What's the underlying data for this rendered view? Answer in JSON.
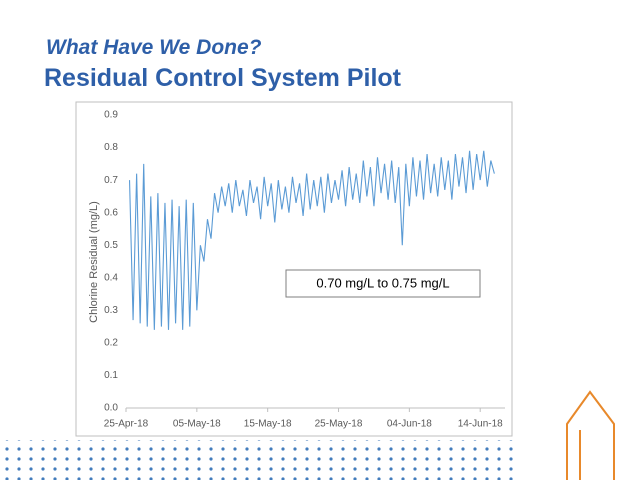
{
  "slide": {
    "title": "What Have We Done?",
    "subtitle": "Residual Control System Pilot"
  },
  "chart_data": {
    "type": "line",
    "y_label": "Chlorine Residual (mg/L)",
    "annotation": "0.70 mg/L to 0.75 mg/L",
    "color": "#5b9bd5",
    "grid": false,
    "xlim": [
      43215,
      43268.5
    ],
    "xticks": [
      {
        "value": 43215,
        "label": "25-Apr-18"
      },
      {
        "value": 43225,
        "label": "05-May-18"
      },
      {
        "value": 43235,
        "label": "15-May-18"
      },
      {
        "value": 43245,
        "label": "25-May-18"
      },
      {
        "value": 43255,
        "label": "04-Jun-18"
      },
      {
        "value": 43265,
        "label": "14-Jun-18"
      }
    ],
    "ylim": [
      0,
      0.9
    ],
    "yticks": [
      {
        "value": 0,
        "label": "0.0"
      },
      0.1,
      0.2,
      0.3,
      0.4,
      0.5,
      0.6,
      0.7,
      0.8,
      0.9
    ],
    "x": [
      43215.5,
      43216,
      43216.5,
      43217,
      43217.5,
      43218,
      43218.5,
      43219,
      43219.5,
      43220,
      43220.5,
      43221,
      43221.5,
      43222,
      43222.5,
      43223,
      43223.5,
      43224,
      43224.5,
      43225,
      43225.5,
      43226,
      43226.5,
      43227,
      43227.5,
      43228,
      43228.5,
      43229,
      43229.5,
      43230,
      43230.5,
      43231,
      43231.5,
      43232,
      43232.5,
      43233,
      43233.5,
      43234,
      43234.5,
      43235,
      43235.5,
      43236,
      43236.5,
      43237,
      43237.5,
      43238,
      43238.5,
      43239,
      43239.5,
      43240,
      43240.5,
      43241,
      43241.5,
      43242,
      43242.5,
      43243,
      43243.5,
      43244,
      43244.5,
      43245,
      43245.5,
      43246,
      43246.5,
      43247,
      43247.5,
      43248,
      43248.5,
      43249,
      43249.5,
      43250,
      43250.5,
      43251,
      43251.5,
      43252,
      43252.5,
      43253,
      43253.5,
      43254,
      43254.5,
      43255,
      43255.5,
      43256,
      43256.5,
      43257,
      43257.5,
      43258,
      43258.5,
      43259,
      43259.5,
      43260,
      43260.5,
      43261,
      43261.5,
      43262,
      43262.5,
      43263,
      43263.5,
      43264,
      43264.5,
      43265,
      43265.5,
      43266,
      43266.5,
      43267
    ],
    "values": [
      0.7,
      0.27,
      0.72,
      0.26,
      0.75,
      0.25,
      0.65,
      0.24,
      0.66,
      0.25,
      0.63,
      0.24,
      0.64,
      0.26,
      0.62,
      0.24,
      0.64,
      0.25,
      0.63,
      0.3,
      0.5,
      0.45,
      0.58,
      0.52,
      0.66,
      0.6,
      0.68,
      0.62,
      0.69,
      0.6,
      0.7,
      0.62,
      0.67,
      0.59,
      0.7,
      0.63,
      0.68,
      0.58,
      0.71,
      0.62,
      0.69,
      0.57,
      0.7,
      0.61,
      0.68,
      0.6,
      0.71,
      0.63,
      0.69,
      0.59,
      0.72,
      0.61,
      0.7,
      0.62,
      0.71,
      0.6,
      0.72,
      0.63,
      0.7,
      0.64,
      0.73,
      0.62,
      0.74,
      0.64,
      0.72,
      0.63,
      0.76,
      0.65,
      0.74,
      0.62,
      0.77,
      0.66,
      0.75,
      0.64,
      0.76,
      0.63,
      0.74,
      0.5,
      0.75,
      0.62,
      0.77,
      0.65,
      0.76,
      0.64,
      0.78,
      0.66,
      0.75,
      0.65,
      0.77,
      0.67,
      0.76,
      0.64,
      0.78,
      0.68,
      0.77,
      0.66,
      0.79,
      0.67,
      0.78,
      0.7,
      0.79,
      0.68,
      0.76,
      0.72
    ]
  }
}
